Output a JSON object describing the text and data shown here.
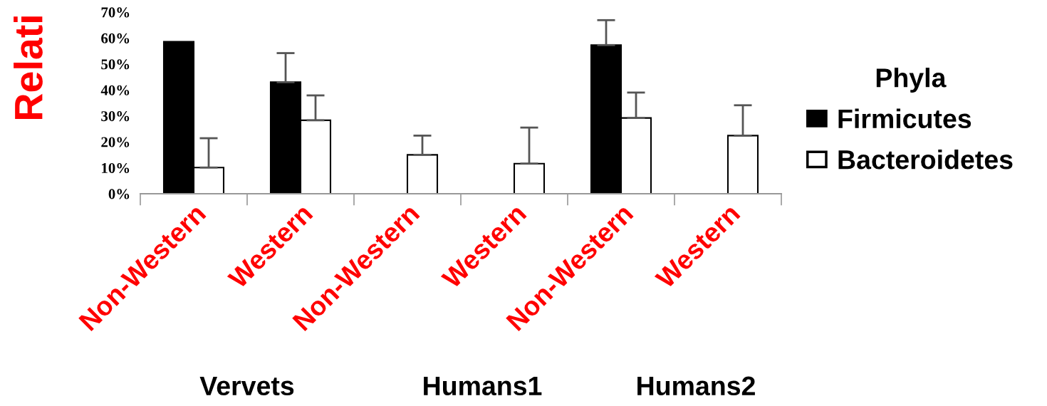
{
  "chart_data": {
    "type": "bar",
    "ylabel": "Relati",
    "categories": [
      "Non-Western",
      "Western",
      "Non-Western",
      "Western",
      "Non-Western",
      "Western"
    ],
    "series": [
      {
        "name": "Firmicutes",
        "color": "#000000",
        "values": [
          58.6,
          43.0,
          null,
          null,
          57.3,
          null
        ],
        "errors": [
          null,
          [
            43.0,
            54.2
          ],
          null,
          null,
          [
            57.3,
            66.9
          ],
          null
        ]
      },
      {
        "name": "Bacteroidetes",
        "color": "#ffffff",
        "values": [
          10.1,
          28.3,
          15.0,
          11.6,
          29.2,
          22.4
        ],
        "errors": [
          [
            10.1,
            21.4
          ],
          [
            28.3,
            37.9
          ],
          [
            15.0,
            22.4
          ],
          [
            11.6,
            25.5
          ],
          [
            29.2,
            39.0
          ],
          [
            22.4,
            34.1
          ]
        ]
      }
    ],
    "ylim": [
      0,
      70
    ],
    "yticks": [
      {
        "value": 0,
        "label": "0%"
      },
      {
        "value": 10,
        "label": "10%"
      },
      {
        "value": 20,
        "label": "20%"
      },
      {
        "value": 30,
        "label": "30%"
      },
      {
        "value": 40,
        "label": "40%"
      },
      {
        "value": 50,
        "label": "50%"
      },
      {
        "value": 60,
        "label": "60%"
      },
      {
        "value": 70,
        "label": "70%"
      }
    ],
    "legend_title": "Phyla",
    "legend": "right",
    "grid": false,
    "annotations": [
      "Vervets",
      "Humans1",
      "Humans2"
    ]
  }
}
